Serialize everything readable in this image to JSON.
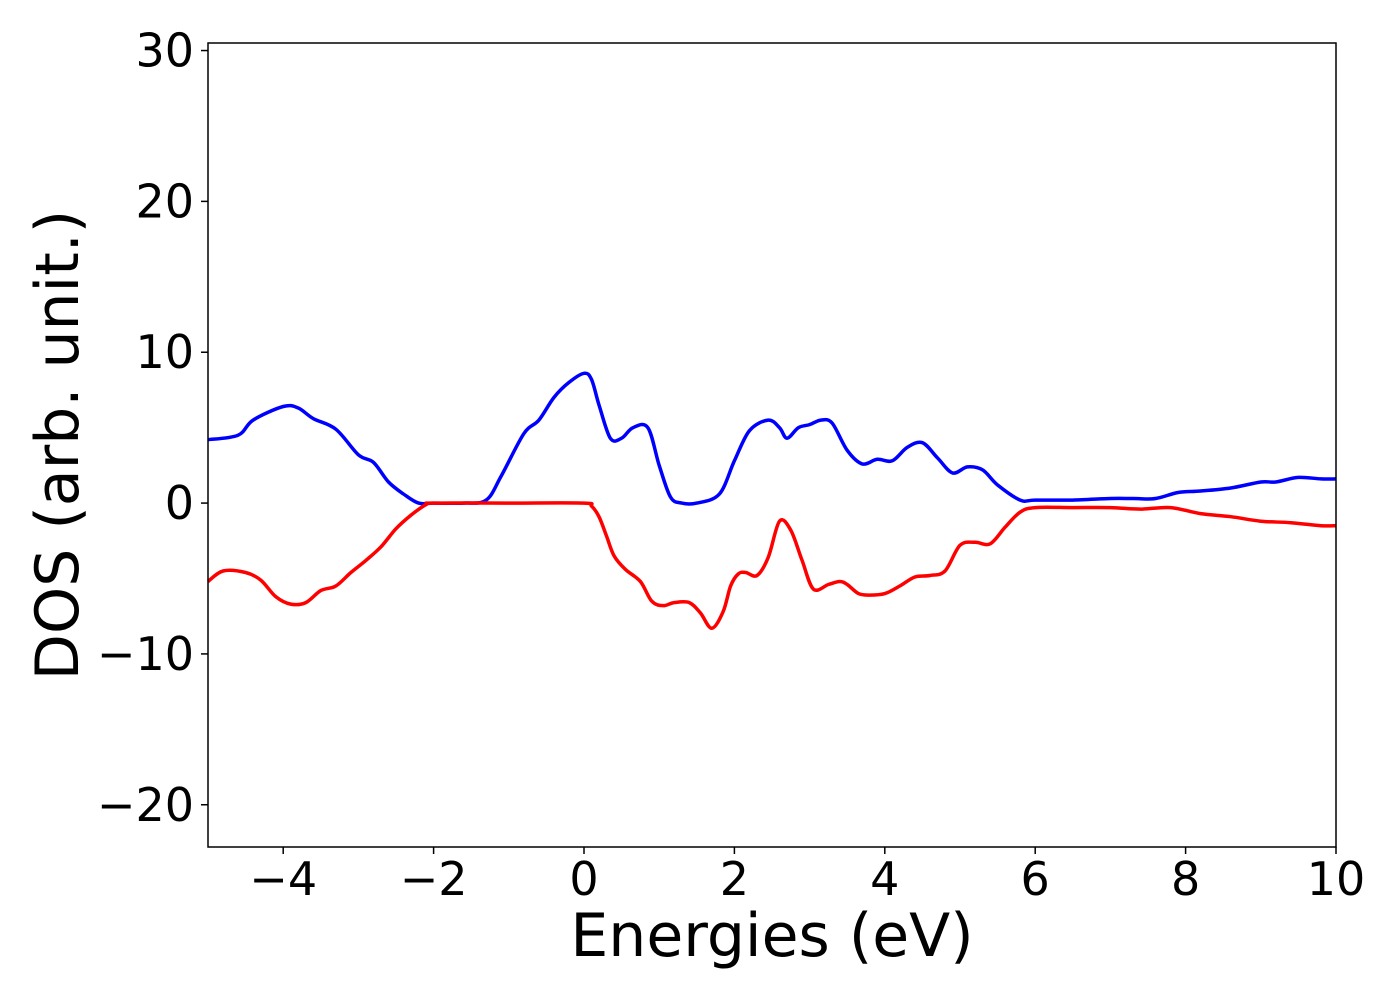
{
  "chart_data": {
    "type": "line",
    "title": "",
    "xlabel": "Energies (eV)",
    "ylabel": "DOS (arb. unit.)",
    "xlim": [
      -5,
      10
    ],
    "ylim": [
      -22.8,
      30.5
    ],
    "xticks": [
      -4,
      -2,
      0,
      2,
      4,
      6,
      8,
      10
    ],
    "xtick_labels": [
      "−4",
      "−2",
      "0",
      "2",
      "4",
      "6",
      "8",
      "10"
    ],
    "yticks": [
      -20,
      -10,
      0,
      10,
      20,
      30
    ],
    "ytick_labels": [
      "−20",
      "−10",
      "0",
      "10",
      "20",
      "30"
    ],
    "grid": false,
    "legend": "none",
    "series": [
      {
        "color": "#0000ff",
        "x": [
          -5.0,
          -4.6,
          -4.4,
          -4.0,
          -3.8,
          -3.6,
          -3.3,
          -3.0,
          -2.8,
          -2.6,
          -2.4,
          -2.2,
          -2.0,
          -1.6,
          -1.3,
          -1.1,
          -0.8,
          -0.6,
          -0.4,
          -0.2,
          0.0,
          0.1,
          0.2,
          0.35,
          0.5,
          0.65,
          0.85,
          1.0,
          1.15,
          1.3,
          1.5,
          1.8,
          2.0,
          2.2,
          2.45,
          2.6,
          2.7,
          2.85,
          3.0,
          3.15,
          3.3,
          3.5,
          3.7,
          3.9,
          4.1,
          4.3,
          4.5,
          4.7,
          4.9,
          5.1,
          5.3,
          5.5,
          5.8,
          6.0,
          6.5,
          7.0,
          7.3,
          7.6,
          7.9,
          8.2,
          8.6,
          9.0,
          9.2,
          9.5,
          9.8,
          10.0
        ],
        "y": [
          4.2,
          4.5,
          5.5,
          6.4,
          6.3,
          5.6,
          4.9,
          3.2,
          2.7,
          1.4,
          0.6,
          0.0,
          0.0,
          0.0,
          0.2,
          1.8,
          4.6,
          5.5,
          7.0,
          8.0,
          8.6,
          8.2,
          6.5,
          4.3,
          4.3,
          5.0,
          5.0,
          2.5,
          0.4,
          0.0,
          0.0,
          0.6,
          2.8,
          4.8,
          5.5,
          5.0,
          4.3,
          5.0,
          5.2,
          5.5,
          5.3,
          3.5,
          2.6,
          2.9,
          2.8,
          3.7,
          4.0,
          3.0,
          2.0,
          2.4,
          2.2,
          1.2,
          0.2,
          0.2,
          0.2,
          0.3,
          0.3,
          0.3,
          0.7,
          0.8,
          1.0,
          1.4,
          1.4,
          1.7,
          1.6,
          1.6
        ]
      },
      {
        "color": "#ff0000",
        "x": [
          -5.0,
          -4.8,
          -4.5,
          -4.3,
          -4.1,
          -3.9,
          -3.7,
          -3.5,
          -3.3,
          -3.1,
          -2.9,
          -2.7,
          -2.5,
          -2.3,
          -2.1,
          -2.0,
          -1.0,
          0.0,
          0.1,
          0.2,
          0.3,
          0.4,
          0.55,
          0.75,
          0.9,
          1.05,
          1.2,
          1.4,
          1.55,
          1.7,
          1.85,
          1.95,
          2.05,
          2.15,
          2.3,
          2.45,
          2.6,
          2.75,
          2.9,
          3.05,
          3.25,
          3.4,
          3.5,
          3.65,
          3.8,
          4.0,
          4.2,
          4.4,
          4.6,
          4.8,
          5.0,
          5.2,
          5.4,
          5.6,
          5.8,
          6.0,
          6.5,
          7.0,
          7.4,
          7.8,
          8.2,
          8.6,
          9.0,
          9.4,
          9.8,
          10.0
        ],
        "y": [
          -5.2,
          -4.5,
          -4.6,
          -5.1,
          -6.2,
          -6.7,
          -6.6,
          -5.8,
          -5.5,
          -4.6,
          -3.8,
          -2.9,
          -1.7,
          -0.8,
          -0.1,
          0.0,
          0.0,
          0.0,
          -0.2,
          -0.9,
          -2.2,
          -3.5,
          -4.4,
          -5.2,
          -6.5,
          -6.8,
          -6.6,
          -6.6,
          -7.3,
          -8.3,
          -7.2,
          -5.5,
          -4.7,
          -4.6,
          -4.8,
          -3.6,
          -1.2,
          -1.8,
          -3.8,
          -5.7,
          -5.4,
          -5.2,
          -5.4,
          -6.0,
          -6.1,
          -6.0,
          -5.5,
          -4.9,
          -4.8,
          -4.5,
          -2.8,
          -2.6,
          -2.7,
          -1.6,
          -0.6,
          -0.3,
          -0.3,
          -0.3,
          -0.4,
          -0.3,
          -0.7,
          -0.9,
          -1.2,
          -1.3,
          -1.5,
          -1.5
        ]
      }
    ]
  }
}
